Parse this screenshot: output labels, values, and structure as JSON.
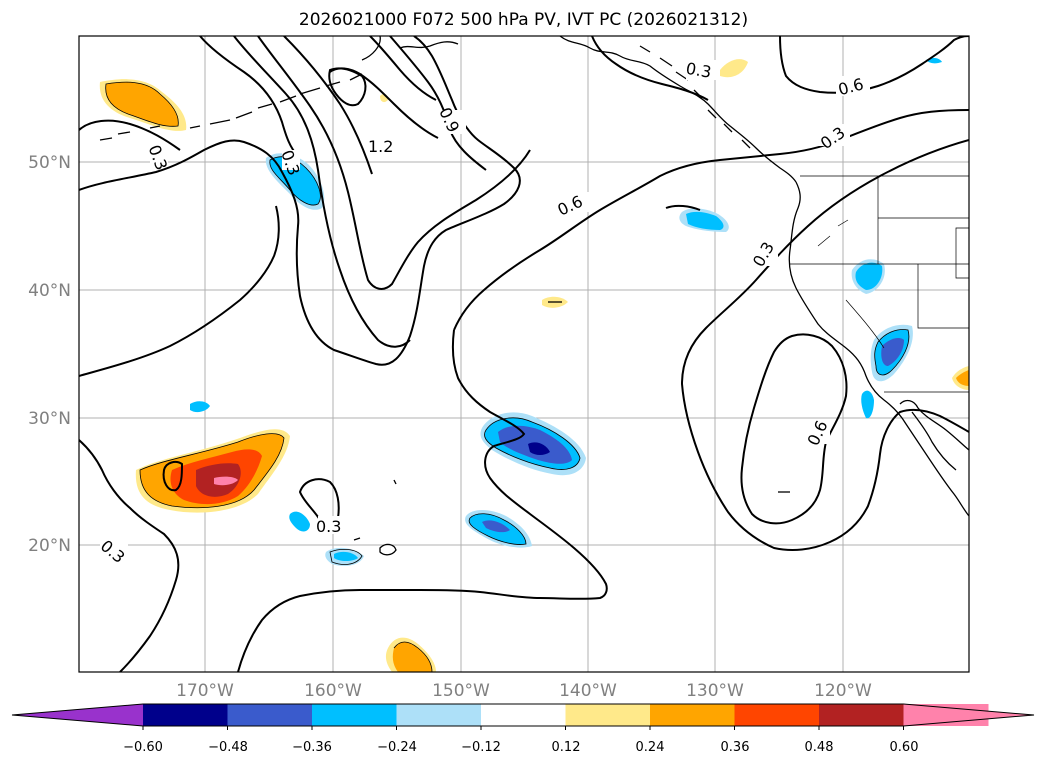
{
  "title": "2026021000 F072 500 hPa PV, IVT PC (2026021312)",
  "map": {
    "lat_labels": [
      "50°N",
      "40°N",
      "30°N",
      "20°N"
    ],
    "lon_labels": [
      "170°W",
      "160°W",
      "150°W",
      "140°W",
      "130°W",
      "120°W"
    ],
    "contour_labels": [
      "0.3",
      "0.3",
      "0.3",
      "0.3",
      "0.3",
      "0.6",
      "0.6",
      "0.6",
      "0.9",
      "1.2",
      "0.3",
      "0.3"
    ]
  },
  "colorbar": {
    "tick_labels": [
      "−0.60",
      "−0.48",
      "−0.36",
      "−0.24",
      "−0.12",
      "0.12",
      "0.24",
      "0.36",
      "0.48",
      "0.60"
    ],
    "colors": [
      "#9932CC",
      "#00008B",
      "#3A5BCC",
      "#00BFFF",
      "#ADE0F8",
      "#FFFFFF",
      "#FFE98A",
      "#FFA500",
      "#FF4500",
      "#B22222",
      "#FF82AB",
      "#FF82AB"
    ]
  }
}
